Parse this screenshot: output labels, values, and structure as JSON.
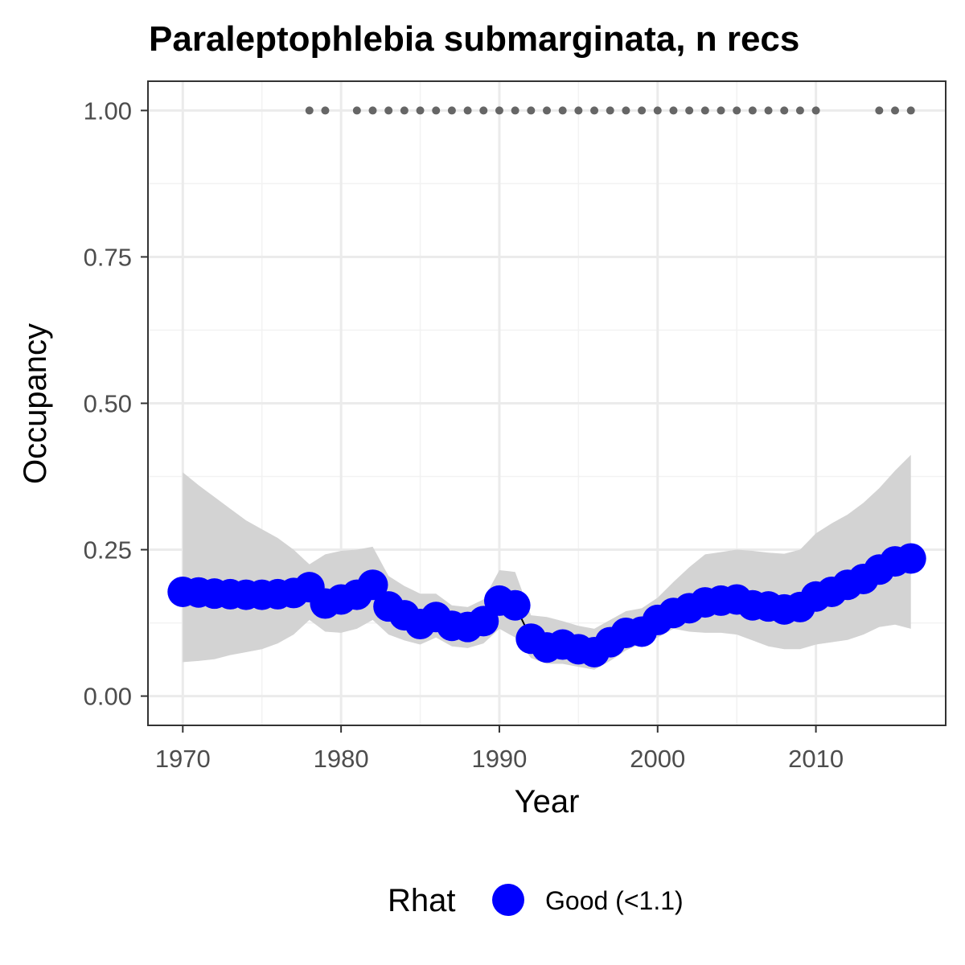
{
  "chart_data": {
    "type": "line",
    "title": "Paraleptophlebia submarginata, n recs",
    "xlabel": "Year",
    "ylabel": "Occupancy",
    "xlim": [
      1967.8,
      2018.2
    ],
    "ylim": [
      -0.05,
      1.05
    ],
    "x_ticks": [
      1970,
      1980,
      1990,
      2000,
      2010
    ],
    "x_tick_labels": [
      "1970",
      "1980",
      "1990",
      "2000",
      "2010"
    ],
    "y_ticks": [
      0,
      0.25,
      0.5,
      0.75,
      1.0
    ],
    "y_tick_labels": [
      "0.00",
      "0.25",
      "0.50",
      "0.75",
      "1.00"
    ],
    "grid": true,
    "series": [
      {
        "name": "Good (<1.1)",
        "color": "#0000ff",
        "x": [
          1970,
          1971,
          1972,
          1973,
          1974,
          1975,
          1976,
          1977,
          1978,
          1979,
          1980,
          1981,
          1982,
          1983,
          1984,
          1985,
          1986,
          1987,
          1988,
          1989,
          1990,
          1991,
          1992,
          1993,
          1994,
          1995,
          1996,
          1997,
          1998,
          1999,
          2000,
          2001,
          2002,
          2003,
          2004,
          2005,
          2006,
          2007,
          2008,
          2009,
          2010,
          2011,
          2012,
          2013,
          2014,
          2015,
          2016
        ],
        "y": [
          0.178,
          0.177,
          0.175,
          0.174,
          0.173,
          0.173,
          0.174,
          0.176,
          0.186,
          0.158,
          0.165,
          0.173,
          0.19,
          0.153,
          0.138,
          0.123,
          0.135,
          0.12,
          0.118,
          0.128,
          0.163,
          0.155,
          0.098,
          0.083,
          0.088,
          0.08,
          0.075,
          0.092,
          0.108,
          0.11,
          0.13,
          0.142,
          0.15,
          0.16,
          0.163,
          0.165,
          0.155,
          0.153,
          0.148,
          0.152,
          0.17,
          0.178,
          0.19,
          0.2,
          0.216,
          0.23,
          0.235
        ],
        "lower": [
          0.058,
          0.06,
          0.063,
          0.07,
          0.075,
          0.08,
          0.09,
          0.105,
          0.13,
          0.11,
          0.108,
          0.115,
          0.13,
          0.105,
          0.095,
          0.088,
          0.1,
          0.085,
          0.082,
          0.09,
          0.115,
          0.1,
          0.065,
          0.055,
          0.055,
          0.05,
          0.045,
          0.06,
          0.078,
          0.09,
          0.1,
          0.115,
          0.11,
          0.108,
          0.108,
          0.105,
          0.095,
          0.085,
          0.08,
          0.08,
          0.088,
          0.092,
          0.096,
          0.105,
          0.118,
          0.122,
          0.115
        ],
        "upper": [
          0.382,
          0.36,
          0.34,
          0.32,
          0.3,
          0.285,
          0.27,
          0.25,
          0.225,
          0.242,
          0.248,
          0.25,
          0.255,
          0.205,
          0.188,
          0.175,
          0.175,
          0.155,
          0.152,
          0.165,
          0.215,
          0.212,
          0.138,
          0.135,
          0.128,
          0.12,
          0.115,
          0.13,
          0.145,
          0.15,
          0.168,
          0.195,
          0.22,
          0.242,
          0.246,
          0.25,
          0.248,
          0.245,
          0.243,
          0.25,
          0.278,
          0.295,
          0.31,
          0.33,
          0.355,
          0.385,
          0.412
        ]
      }
    ],
    "records": {
      "value": 1.0,
      "color": "#666666",
      "x": [
        1978,
        1979,
        1981,
        1982,
        1983,
        1984,
        1985,
        1986,
        1987,
        1988,
        1989,
        1990,
        1991,
        1992,
        1993,
        1994,
        1995,
        1996,
        1997,
        1998,
        1999,
        2000,
        2001,
        2002,
        2003,
        2004,
        2005,
        2006,
        2007,
        2008,
        2009,
        2010,
        2014,
        2015,
        2016
      ]
    },
    "band_color": "#d3d3d3",
    "legend": {
      "title": "Rhat",
      "position": "bottom",
      "entries": [
        {
          "label": "Good (<1.1)",
          "color": "#0000ff"
        }
      ]
    }
  }
}
